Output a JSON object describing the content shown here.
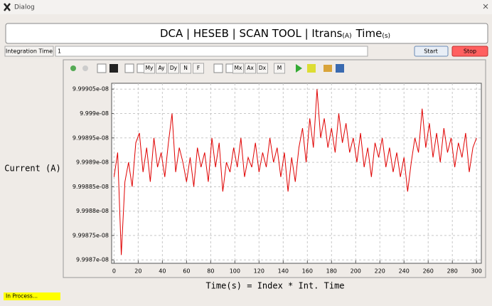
{
  "window": {
    "title": "Dialog"
  },
  "header": {
    "title": "DCA | HESEB | SCAN TOOL | Itrans",
    "sub1": "(A)",
    "title2": "Time",
    "sub2": "(s)"
  },
  "controls": {
    "integration_label": "Integration Time",
    "integration_value": "1",
    "start": "Start",
    "stop": "Stop"
  },
  "toolbar": [
    "My",
    "Ay",
    "Dy",
    "N",
    "F",
    "Mx",
    "Ax",
    "Dx",
    "M"
  ],
  "status": "In Process...",
  "chart_data": {
    "type": "line",
    "y_label": "Current (A)",
    "x_label": "Time(s) = Index * Int. Time",
    "grid": true,
    "xlim": [
      -2,
      304
    ],
    "ylim": [
      9.998693e-08,
      9.999062e-08
    ],
    "xticks": [
      0,
      20,
      40,
      60,
      80,
      100,
      120,
      140,
      160,
      180,
      200,
      220,
      240,
      260,
      280,
      300
    ],
    "yticks": [
      {
        "value": 9.9987e-08,
        "label": "9.9987e-08"
      },
      {
        "value": 9.99875e-08,
        "label": "9.99875e-08"
      },
      {
        "value": 9.9988e-08,
        "label": "9.9988e-08"
      },
      {
        "value": 9.99885e-08,
        "label": "9.99885e-08"
      },
      {
        "value": 9.9989e-08,
        "label": "9.9989e-08"
      },
      {
        "value": 9.99895e-08,
        "label": "9.99895e-08"
      },
      {
        "value": 9.999e-08,
        "label": "9.999e-08"
      },
      {
        "value": 9.99905e-08,
        "label": "9.99905e-08"
      }
    ],
    "x": [
      0,
      3,
      6,
      9,
      12,
      15,
      18,
      21,
      24,
      27,
      30,
      33,
      36,
      39,
      42,
      45,
      48,
      51,
      54,
      57,
      60,
      63,
      66,
      69,
      72,
      75,
      78,
      81,
      84,
      87,
      90,
      93,
      96,
      99,
      102,
      105,
      108,
      111,
      114,
      117,
      120,
      123,
      126,
      129,
      132,
      135,
      138,
      141,
      144,
      147,
      150,
      153,
      156,
      159,
      162,
      165,
      168,
      171,
      174,
      177,
      180,
      183,
      186,
      189,
      192,
      195,
      198,
      201,
      204,
      207,
      210,
      213,
      216,
      219,
      222,
      225,
      228,
      231,
      234,
      237,
      240,
      243,
      246,
      249,
      252,
      255,
      258,
      261,
      264,
      267,
      270,
      273,
      276,
      279,
      282,
      285,
      288,
      291,
      294,
      297,
      300
    ],
    "series": [
      {
        "color": "#e00000",
        "values": [
          9.99887e-08,
          9.99892e-08,
          9.99871e-08,
          9.99886e-08,
          9.9989e-08,
          9.99885e-08,
          9.99894e-08,
          9.99896e-08,
          9.99888e-08,
          9.99893e-08,
          9.99886e-08,
          9.99895e-08,
          9.99889e-08,
          9.99892e-08,
          9.99887e-08,
          9.99894e-08,
          9.999e-08,
          9.99888e-08,
          9.99893e-08,
          9.9989e-08,
          9.99886e-08,
          9.99891e-08,
          9.99885e-08,
          9.99893e-08,
          9.99889e-08,
          9.99892e-08,
          9.99886e-08,
          9.99895e-08,
          9.99889e-08,
          9.99894e-08,
          9.99884e-08,
          9.9989e-08,
          9.99888e-08,
          9.99893e-08,
          9.99889e-08,
          9.99895e-08,
          9.99887e-08,
          9.99891e-08,
          9.99889e-08,
          9.99894e-08,
          9.99888e-08,
          9.99892e-08,
          9.99889e-08,
          9.99895e-08,
          9.9989e-08,
          9.99893e-08,
          9.99887e-08,
          9.99892e-08,
          9.99884e-08,
          9.99891e-08,
          9.99886e-08,
          9.99893e-08,
          9.99897e-08,
          9.9989e-08,
          9.99899e-08,
          9.99893e-08,
          9.99905e-08,
          9.99895e-08,
          9.99899e-08,
          9.99893e-08,
          9.99897e-08,
          9.99892e-08,
          9.999e-08,
          9.99894e-08,
          9.99898e-08,
          9.99892e-08,
          9.99895e-08,
          9.9989e-08,
          9.99896e-08,
          9.99889e-08,
          9.99893e-08,
          9.99887e-08,
          9.99894e-08,
          9.99891e-08,
          9.99895e-08,
          9.99889e-08,
          9.99893e-08,
          9.99888e-08,
          9.99892e-08,
          9.99887e-08,
          9.99891e-08,
          9.99884e-08,
          9.9989e-08,
          9.99895e-08,
          9.99892e-08,
          9.99901e-08,
          9.99893e-08,
          9.99898e-08,
          9.99891e-08,
          9.99896e-08,
          9.9989e-08,
          9.99897e-08,
          9.99892e-08,
          9.99895e-08,
          9.99889e-08,
          9.99894e-08,
          9.99891e-08,
          9.99896e-08,
          9.99888e-08,
          9.99893e-08,
          9.99895e-08
        ]
      }
    ]
  }
}
